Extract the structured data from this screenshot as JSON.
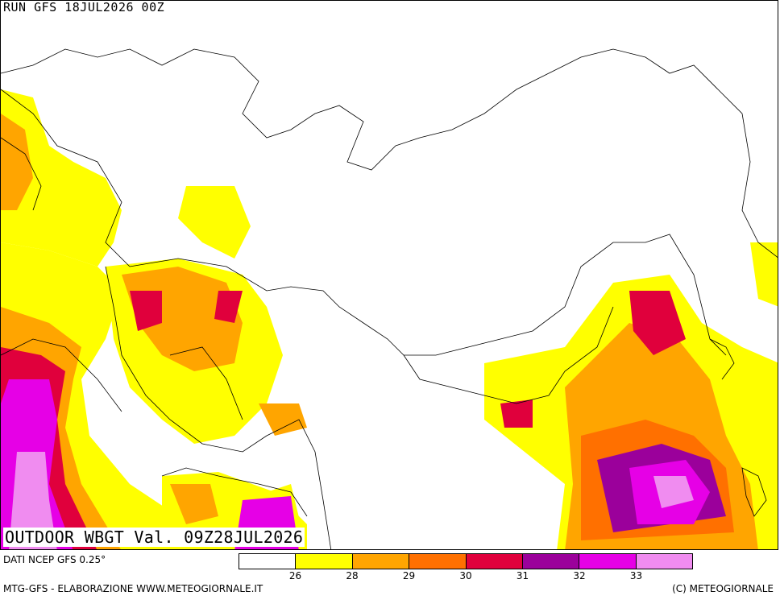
{
  "header": {
    "run_label": "RUN GFS 18JUL2026 00Z"
  },
  "map": {
    "title": "OUTDOOR WBGT Val. 09Z28JUL2026",
    "data_source": "DATI NCEP GFS 0.25°",
    "icons": [
      "wbgt-field-map",
      "country-borders"
    ]
  },
  "legend": {
    "colors": [
      "#ffffff",
      "#ffff00",
      "#ffa500",
      "#ff7000",
      "#e0003c",
      "#9b009b",
      "#e600e6",
      "#f08cf0"
    ],
    "labels": [
      "26",
      "28",
      "29",
      "30",
      "31",
      "32",
      "33"
    ]
  },
  "footer": {
    "left": "MTG-GFS - ELABORAZIONE WWW.METEOGIORNALE.IT",
    "right": "(C) METEOGIORNALE"
  }
}
